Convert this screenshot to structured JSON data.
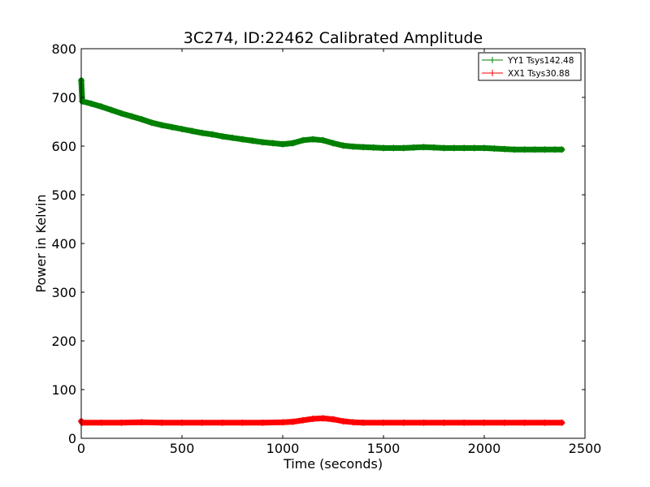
{
  "chart_data": {
    "type": "line",
    "title": "3C274, ID:22462 Calibrated Amplitude",
    "xlabel": "Time (seconds)",
    "ylabel": "Power in Kelvin",
    "xlim": [
      0,
      2500
    ],
    "ylim": [
      0,
      800
    ],
    "xticks": [
      "0",
      "500",
      "1000",
      "1500",
      "2000",
      "2500"
    ],
    "yticks": [
      "0",
      "100",
      "200",
      "300",
      "400",
      "500",
      "600",
      "700",
      "800"
    ],
    "grid": false,
    "legend_position": "top-right",
    "series": [
      {
        "name": "YY1 Tsys142.48",
        "color": "#008000",
        "marker": "plus",
        "x": [
          0,
          5,
          50,
          100,
          150,
          200,
          250,
          300,
          350,
          400,
          450,
          500,
          550,
          600,
          650,
          700,
          750,
          800,
          850,
          900,
          950,
          1000,
          1050,
          1100,
          1150,
          1200,
          1250,
          1300,
          1350,
          1400,
          1450,
          1500,
          1550,
          1600,
          1650,
          1700,
          1750,
          1800,
          1850,
          1900,
          1950,
          2000,
          2050,
          2100,
          2150,
          2200,
          2250,
          2300,
          2350,
          2385
        ],
        "y": [
          735,
          692,
          687,
          681,
          674,
          667,
          661,
          655,
          648,
          643,
          639,
          635,
          631,
          627,
          624,
          620,
          617,
          614,
          611,
          608,
          606,
          604,
          606,
          612,
          614,
          612,
          606,
          601,
          599,
          598,
          597,
          596,
          596,
          596,
          597,
          598,
          597,
          596,
          596,
          596,
          596,
          596,
          595,
          594,
          593,
          593,
          593,
          593,
          593,
          593
        ]
      },
      {
        "name": "XX1 Tsys30.88",
        "color": "#ff0000",
        "marker": "plus",
        "x": [
          0,
          5,
          100,
          200,
          300,
          400,
          500,
          600,
          700,
          800,
          900,
          1000,
          1050,
          1100,
          1150,
          1200,
          1250,
          1300,
          1350,
          1400,
          1500,
          1600,
          1700,
          1800,
          1900,
          2000,
          2100,
          2200,
          2300,
          2385
        ],
        "y": [
          35,
          32,
          32,
          32,
          33,
          32,
          32,
          32,
          32,
          32,
          32,
          33,
          34,
          37,
          40,
          41,
          39,
          35,
          33,
          32,
          32,
          32,
          32,
          32,
          32,
          32,
          32,
          32,
          32,
          32
        ]
      }
    ]
  }
}
